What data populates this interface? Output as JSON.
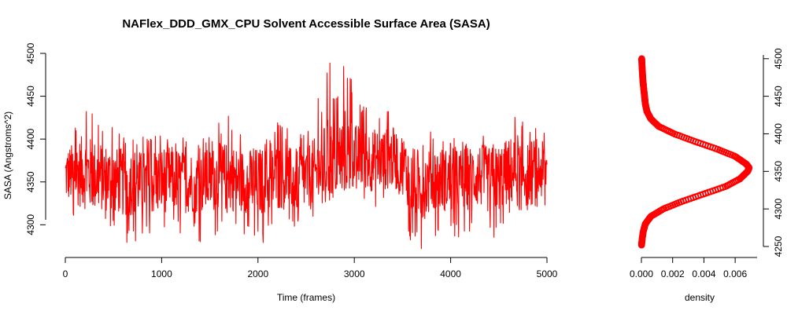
{
  "chart_data": [
    {
      "type": "line",
      "title": "NAFlex_DDD_GMX_CPU Solvent Accessible Surface Area (SASA)",
      "xlabel": "Time (frames)",
      "ylabel": "SASA (Angstroms^2)",
      "xlim": [
        0,
        5000
      ],
      "ylim": [
        4260,
        4500
      ],
      "x_ticks": [
        0,
        1000,
        2000,
        3000,
        4000,
        5000
      ],
      "y_ticks": [
        4300,
        4350,
        4400,
        4450,
        4500
      ],
      "x_tick_labels": [
        "0",
        "1000",
        "2000",
        "3000",
        "4000",
        "5000"
      ],
      "y_tick_labels": [
        "4300",
        "4350",
        "4400",
        "4450",
        "4500"
      ],
      "series": [
        {
          "color": "#ff0000",
          "x": [
            0,
            100,
            200,
            300,
            400,
            500,
            600,
            700,
            800,
            900,
            1000,
            1100,
            1200,
            1300,
            1400,
            1500,
            1600,
            1700,
            1800,
            1900,
            2000,
            2100,
            2200,
            2300,
            2400,
            2500,
            2600,
            2700,
            2750,
            2800,
            2900,
            2950,
            3000,
            3100,
            3200,
            3300,
            3400,
            3500,
            3600,
            3700,
            3800,
            3900,
            4000,
            4100,
            4200,
            4300,
            4400,
            4500,
            4600,
            4700,
            4800,
            4900,
            5000
          ],
          "mean": [
            4358,
            4360,
            4362,
            4357,
            4356,
            4352,
            4350,
            4351,
            4348,
            4350,
            4352,
            4355,
            4351,
            4350,
            4349,
            4352,
            4355,
            4356,
            4352,
            4351,
            4350,
            4352,
            4356,
            4354,
            4352,
            4355,
            4360,
            4372,
            4376,
            4372,
            4385,
            4388,
            4380,
            4378,
            4375,
            4376,
            4378,
            4372,
            4350,
            4345,
            4352,
            4354,
            4350,
            4352,
            4355,
            4358,
            4352,
            4355,
            4362,
            4364,
            4360,
            4362,
            4365
          ],
          "upper": [
            4405,
            4420,
            4440,
            4437,
            4430,
            4415,
            4410,
            4400,
            4405,
            4410,
            4420,
            4415,
            4405,
            4405,
            4400,
            4405,
            4420,
            4430,
            4410,
            4405,
            4400,
            4405,
            4420,
            4415,
            4410,
            4420,
            4440,
            4470,
            4500,
            4460,
            4500,
            4485,
            4450,
            4445,
            4440,
            4440,
            4445,
            4430,
            4400,
            4400,
            4410,
            4410,
            4400,
            4405,
            4410,
            4420,
            4405,
            4410,
            4430,
            4445,
            4425,
            4435,
            4410
          ],
          "lower": [
            4305,
            4300,
            4298,
            4300,
            4298,
            4295,
            4280,
            4270,
            4285,
            4282,
            4290,
            4295,
            4285,
            4288,
            4280,
            4285,
            4290,
            4300,
            4290,
            4285,
            4270,
            4285,
            4295,
            4295,
            4290,
            4295,
            4305,
            4320,
            4328,
            4330,
            4335,
            4340,
            4328,
            4325,
            4320,
            4325,
            4328,
            4315,
            4270,
            4268,
            4285,
            4290,
            4280,
            4285,
            4290,
            4298,
            4280,
            4285,
            4305,
            4300,
            4300,
            4305,
            4320
          ]
        }
      ]
    },
    {
      "type": "line",
      "xlabel": "density",
      "xlim": [
        0,
        0.0069
      ],
      "ylim": [
        4250,
        4505
      ],
      "x_ticks": [
        0,
        0.002,
        0.004,
        0.006
      ],
      "y_ticks": [
        4250,
        4300,
        4350,
        4400,
        4450,
        4500
      ],
      "x_tick_labels": [
        "0.000",
        "0.002",
        "0.004",
        "0.006"
      ],
      "y_tick_labels": [
        "4250",
        "4300",
        "4350",
        "4400",
        "4450",
        "4500"
      ],
      "series": [
        {
          "color": "#ff0000",
          "y": [
            4252,
            4260,
            4270,
            4280,
            4290,
            4300,
            4310,
            4320,
            4330,
            4340,
            4350,
            4355,
            4360,
            4370,
            4380,
            4390,
            4400,
            4410,
            4420,
            4430,
            4440,
            4450,
            4460,
            4470,
            4480,
            4490,
            4500
          ],
          "x": [
            1e-05,
            5e-05,
            0.00012,
            0.00025,
            0.0006,
            0.0014,
            0.0026,
            0.004,
            0.0054,
            0.0063,
            0.0068,
            0.0069,
            0.0067,
            0.006,
            0.0048,
            0.0034,
            0.0021,
            0.0011,
            0.0006,
            0.00035,
            0.00025,
            0.0002,
            0.00015,
            0.0001,
            7e-05,
            4e-05,
            2e-05
          ]
        }
      ]
    }
  ]
}
